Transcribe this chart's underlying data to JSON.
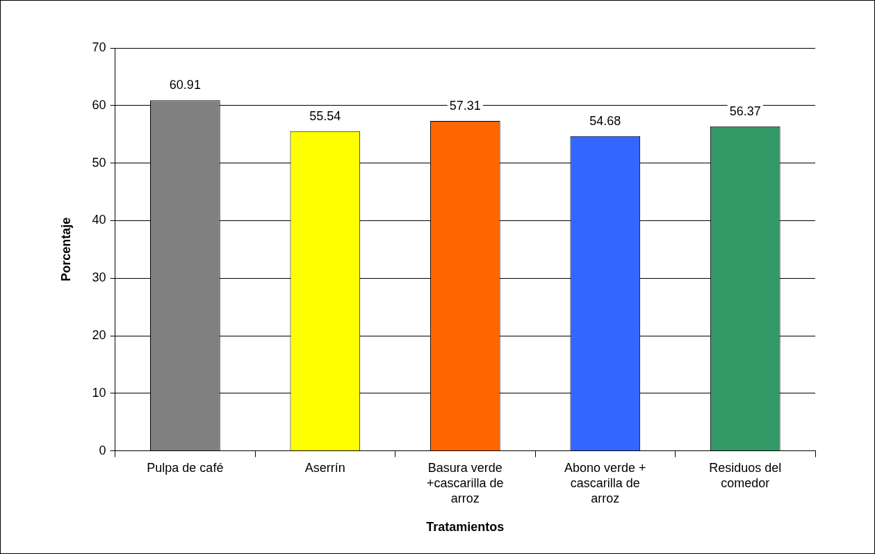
{
  "chart_data": {
    "type": "bar",
    "xlabel": "Tratamientos",
    "ylabel": "Porcentaje",
    "categories": [
      "Pulpa de café",
      "Aserrín",
      "Basura verde +cascarilla de arroz",
      "Abono verde + cascarilla de arroz",
      "Residuos del comedor"
    ],
    "values": [
      60.91,
      55.54,
      57.31,
      54.68,
      56.37
    ],
    "colors": [
      "#808080",
      "#ffff00",
      "#ff6600",
      "#3366ff",
      "#339966"
    ],
    "ylim": [
      0,
      70
    ],
    "yticks": [
      0,
      10,
      20,
      30,
      40,
      50,
      60,
      70
    ],
    "grid": "y",
    "data_labels": true
  }
}
